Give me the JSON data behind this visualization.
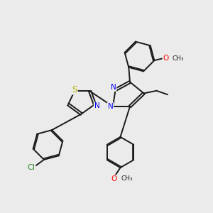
{
  "bg_color": "#ebebeb",
  "bond_color": "#1a1a1a",
  "bond_width": 1.4,
  "atom_colors": {
    "N": "#0000ff",
    "S": "#b8b800",
    "O": "#ff0000",
    "Cl": "#228B22",
    "C": "#1a1a1a"
  },
  "font_size": 7.5
}
